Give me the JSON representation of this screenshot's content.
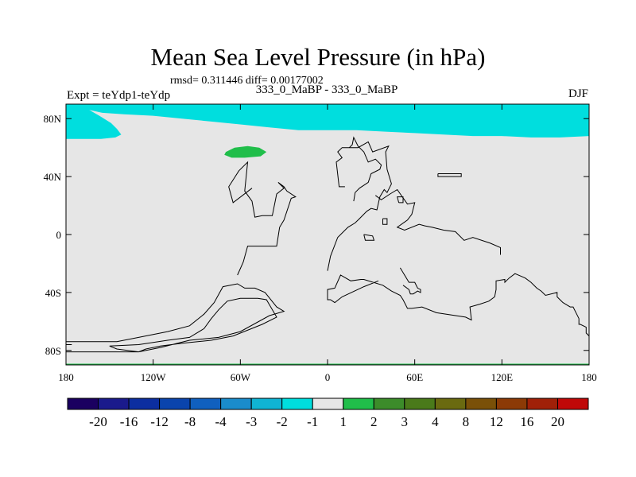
{
  "chart_data": {
    "type": "heatmap",
    "title": "Mean Sea Level Pressure (in hPa)",
    "stats": "rmsd= 0.311446 diff= 0.00177002",
    "subtitle": "333_0_MaBP - 333_0_MaBP",
    "left_label": "Expt = teYdp1-teYdp",
    "right_label": "DJF",
    "xlim": [
      -180,
      180
    ],
    "ylim": [
      -90,
      90
    ],
    "x_ticks": [
      {
        "value": -180,
        "label": "180"
      },
      {
        "value": -120,
        "label": "120W"
      },
      {
        "value": -60,
        "label": "60W"
      },
      {
        "value": 0,
        "label": "0"
      },
      {
        "value": 60,
        "label": "60E"
      },
      {
        "value": 120,
        "label": "120E"
      },
      {
        "value": 180,
        "label": "180"
      }
    ],
    "y_ticks": [
      {
        "value": 80,
        "label": "80N"
      },
      {
        "value": 40,
        "label": "40N"
      },
      {
        "value": 0,
        "label": "0"
      },
      {
        "value": -40,
        "label": "40S"
      },
      {
        "value": -80,
        "label": "80S"
      }
    ],
    "colorbar": {
      "levels": [
        "-20",
        "-16",
        "-12",
        "-8",
        "-4",
        "-3",
        "-2",
        "-1",
        "1",
        "2",
        "3",
        "4",
        "8",
        "12",
        "16",
        "20"
      ],
      "colors": [
        "#1a0060",
        "#1a1a8c",
        "#0c2ea0",
        "#0a44ad",
        "#1060bf",
        "#1a8ccc",
        "#10b4d4",
        "#00dede",
        "#e6e6e6",
        "#20be4a",
        "#3c8c2a",
        "#4a7a1a",
        "#6a6a10",
        "#7a5008",
        "#8c3a06",
        "#a02008",
        "#c00808"
      ]
    },
    "background_color": "#e6e6e6",
    "regions": [
      {
        "name": "arctic-negative-anomaly",
        "class": "-2 to -1",
        "color": "#00dede",
        "polygon": [
          [
            -180,
            90
          ],
          [
            180,
            90
          ],
          [
            180,
            68
          ],
          [
            160,
            67
          ],
          [
            140,
            67
          ],
          [
            120,
            68
          ],
          [
            100,
            68
          ],
          [
            80,
            69
          ],
          [
            60,
            70
          ],
          [
            40,
            71
          ],
          [
            20,
            72
          ],
          [
            0,
            72
          ],
          [
            -20,
            72
          ],
          [
            -40,
            74
          ],
          [
            -60,
            76
          ],
          [
            -80,
            78
          ],
          [
            -100,
            80
          ],
          [
            -120,
            82
          ],
          [
            -140,
            83
          ],
          [
            -155,
            84
          ],
          [
            -164,
            86
          ],
          [
            -157,
            82
          ],
          [
            -149,
            77
          ],
          [
            -145,
            73
          ],
          [
            -142,
            69
          ],
          [
            -146,
            67
          ],
          [
            -156,
            66
          ],
          [
            -168,
            66
          ],
          [
            -180,
            66
          ]
        ]
      },
      {
        "name": "north-pacific-positive-anomaly",
        "class": "1 to 2",
        "color": "#20be4a",
        "polygon": [
          [
            -70,
            57
          ],
          [
            -64,
            60
          ],
          [
            -55,
            61
          ],
          [
            -47,
            60
          ],
          [
            -42,
            57
          ],
          [
            -46,
            54
          ],
          [
            -57,
            53
          ],
          [
            -66,
            53
          ],
          [
            -71,
            55
          ]
        ]
      },
      {
        "name": "antarctic-rim-positive-anomaly",
        "class": "1 to 2",
        "color": "#20be4a",
        "polygon": [
          [
            -180,
            -89.2
          ],
          [
            180,
            -89.2
          ],
          [
            180,
            -90
          ],
          [
            -180,
            -90
          ]
        ]
      }
    ],
    "coastlines": [
      [
        [
          -180,
          -74
        ],
        [
          -145,
          -74
        ],
        [
          -130,
          -71
        ],
        [
          -110,
          -67
        ],
        [
          -95,
          -63
        ],
        [
          -85,
          -55
        ],
        [
          -78,
          -47
        ],
        [
          -72,
          -36
        ],
        [
          -62,
          -34
        ],
        [
          -57,
          -37
        ],
        [
          -50,
          -37
        ],
        [
          -43,
          -40
        ],
        [
          -35,
          -50
        ],
        [
          -30,
          -53
        ],
        [
          -40,
          -56
        ],
        [
          -60,
          -67
        ],
        [
          -75,
          -71
        ],
        [
          -95,
          -73
        ],
        [
          -115,
          -78
        ],
        [
          -130,
          -81
        ],
        [
          -145,
          -79
        ],
        [
          -150,
          -77
        ],
        [
          -130,
          -76
        ],
        [
          -110,
          -73
        ],
        [
          -95,
          -71
        ],
        [
          -85,
          -65
        ],
        [
          -80,
          -58
        ],
        [
          -75,
          -52
        ],
        [
          -69,
          -46
        ],
        [
          -60,
          -44
        ],
        [
          -48,
          -44
        ],
        [
          -42,
          -45
        ],
        [
          -35,
          -57
        ],
        [
          -45,
          -62
        ],
        [
          -65,
          -70
        ],
        [
          -80,
          -73
        ],
        [
          -100,
          -75
        ],
        [
          -115,
          -77
        ],
        [
          -125,
          -79
        ],
        [
          -130,
          -81
        ],
        [
          -180,
          -81
        ]
      ],
      [
        [
          -62,
          -28
        ],
        [
          -58,
          -19
        ],
        [
          -55,
          -8
        ],
        [
          -35,
          -8
        ],
        [
          -33,
          5
        ],
        [
          -30,
          10
        ],
        [
          -25,
          25
        ],
        [
          -22,
          26
        ],
        [
          -28,
          30
        ],
        [
          -30,
          33
        ],
        [
          -34,
          36
        ],
        [
          -30,
          32
        ],
        [
          -35,
          28
        ],
        [
          -38,
          13
        ],
        [
          -45,
          13
        ],
        [
          -50,
          12
        ],
        [
          -52,
          23
        ],
        [
          -57,
          30
        ],
        [
          -55,
          50
        ],
        [
          -61,
          44
        ],
        [
          -68,
          33
        ],
        [
          -65,
          22
        ],
        [
          -52,
          32
        ]
      ],
      [
        [
          0,
          -25
        ],
        [
          2,
          -15
        ],
        [
          7,
          -2
        ],
        [
          14,
          5
        ],
        [
          19,
          8
        ],
        [
          22,
          11
        ],
        [
          27,
          16
        ],
        [
          30,
          18
        ],
        [
          34,
          17
        ],
        [
          36,
          26
        ],
        [
          39,
          31
        ],
        [
          41,
          29
        ],
        [
          44,
          35
        ],
        [
          41,
          45
        ],
        [
          40,
          57
        ],
        [
          42,
          61
        ],
        [
          31,
          57
        ],
        [
          28,
          64
        ],
        [
          21,
          60
        ],
        [
          10,
          60
        ],
        [
          7,
          57
        ],
        [
          10,
          53
        ],
        [
          6,
          50
        ],
        [
          8,
          33
        ],
        [
          12,
          33
        ],
        [
          9,
          33
        ]
      ],
      [
        [
          15,
          60
        ],
        [
          17,
          62
        ],
        [
          18,
          67
        ],
        [
          21,
          61
        ],
        [
          25,
          57
        ],
        [
          28,
          50
        ],
        [
          33,
          52
        ],
        [
          37,
          48
        ],
        [
          36,
          45
        ],
        [
          30,
          42
        ],
        [
          28,
          36
        ],
        [
          22,
          32
        ],
        [
          19,
          29
        ],
        [
          18,
          23
        ]
      ],
      [
        [
          33,
          27
        ],
        [
          37,
          24
        ],
        [
          43,
          28
        ],
        [
          48,
          31
        ],
        [
          55,
          21
        ],
        [
          60,
          22
        ],
        [
          58,
          14
        ],
        [
          55,
          10
        ],
        [
          48,
          5
        ],
        [
          53,
          3
        ],
        [
          63,
          7
        ],
        [
          67,
          6
        ],
        [
          72,
          5
        ],
        [
          80,
          3
        ],
        [
          88,
          2
        ],
        [
          94,
          -4
        ],
        [
          100,
          -2
        ],
        [
          112,
          -6
        ],
        [
          119,
          -9
        ],
        [
          119,
          -14
        ]
      ],
      [
        [
          35,
          -32
        ],
        [
          25,
          -36
        ],
        [
          10,
          -43
        ],
        [
          5,
          -47
        ],
        [
          2,
          -45
        ],
        [
          0,
          -45
        ],
        [
          0,
          -38
        ],
        [
          5,
          -37
        ],
        [
          9,
          -28
        ],
        [
          16,
          -32
        ],
        [
          23,
          -31
        ],
        [
          25,
          -31
        ],
        [
          38,
          -35
        ],
        [
          44,
          -39
        ],
        [
          50,
          -42
        ],
        [
          52,
          -45
        ],
        [
          55,
          -51
        ],
        [
          58,
          -51
        ],
        [
          65,
          -50
        ],
        [
          75,
          -54
        ],
        [
          95,
          -57
        ],
        [
          99,
          -59
        ],
        [
          98,
          -50
        ],
        [
          105,
          -48
        ],
        [
          111,
          -46
        ],
        [
          115,
          -43
        ],
        [
          116,
          -38
        ],
        [
          116,
          -32
        ],
        [
          122,
          -31
        ],
        [
          122,
          -33
        ],
        [
          125,
          -30
        ],
        [
          129,
          -27
        ],
        [
          136,
          -30
        ],
        [
          140,
          -33
        ],
        [
          144,
          -37
        ],
        [
          147,
          -39
        ],
        [
          150,
          -42
        ],
        [
          158,
          -40
        ],
        [
          158,
          -43
        ],
        [
          160,
          -45
        ],
        [
          162,
          -47
        ],
        [
          167,
          -50
        ],
        [
          169,
          -50
        ],
        [
          173,
          -58
        ],
        [
          173,
          -62
        ],
        [
          174,
          -62
        ],
        [
          178,
          -64
        ],
        [
          178,
          -68
        ],
        [
          180,
          -70
        ]
      ],
      [
        [
          50,
          -23
        ],
        [
          56,
          -33
        ],
        [
          60,
          -33
        ],
        [
          62,
          -37
        ],
        [
          64,
          -38
        ],
        [
          64,
          -40
        ],
        [
          62,
          -39
        ],
        [
          59,
          -41
        ],
        [
          57,
          -41
        ],
        [
          56,
          -38
        ],
        [
          52,
          -35
        ]
      ],
      [
        [
          -180,
          -76
        ],
        [
          -176,
          -76
        ]
      ]
    ],
    "islands": [
      [
        [
          76,
          42
        ],
        [
          92,
          42
        ],
        [
          92,
          40
        ],
        [
          76,
          40
        ],
        [
          76,
          42
        ]
      ],
      [
        [
          49,
          22
        ],
        [
          52,
          22
        ],
        [
          52,
          26
        ],
        [
          48,
          26
        ],
        [
          49,
          22
        ]
      ],
      [
        [
          38,
          11
        ],
        [
          41,
          11
        ],
        [
          41,
          7
        ],
        [
          38,
          7
        ],
        [
          38,
          11
        ]
      ],
      [
        [
          25,
          0
        ],
        [
          31,
          -1
        ],
        [
          32,
          -4
        ],
        [
          26,
          -4
        ],
        [
          25,
          0
        ]
      ]
    ]
  }
}
